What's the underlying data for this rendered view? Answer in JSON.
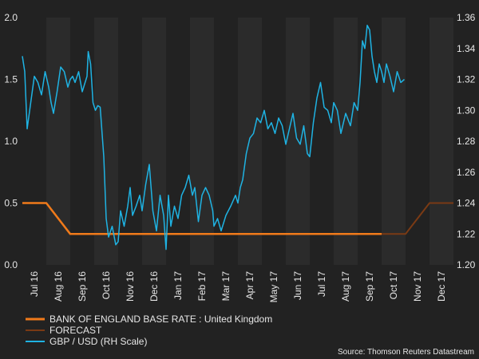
{
  "chart_data": {
    "type": "line",
    "left_axis": {
      "ylim": [
        0,
        2
      ],
      "ticks": [
        "0.0",
        "0.5",
        "1.0",
        "1.5",
        "2.0"
      ],
      "tick_values": [
        0,
        0.5,
        1.0,
        1.5,
        2.0
      ]
    },
    "right_axis": {
      "ylim": [
        1.2,
        1.36
      ],
      "ticks": [
        "1.20",
        "1.22",
        "1.24",
        "1.26",
        "1.28",
        "1.30",
        "1.32",
        "1.34",
        "1.36"
      ],
      "tick_values": [
        1.2,
        1.22,
        1.24,
        1.26,
        1.28,
        1.3,
        1.32,
        1.34,
        1.36
      ]
    },
    "x_range_months": [
      0,
      18
    ],
    "month_labels": [
      "Jul 16",
      "Aug 16",
      "Sep 16",
      "Oct 16",
      "Nov 16",
      "Dec 16",
      "Jan 17",
      "Feb 17",
      "Mar 17",
      "Apr 17",
      "May 17",
      "Jun 17",
      "Jul 17",
      "Aug 17",
      "Sep 17",
      "Oct 17",
      "Nov 17",
      "Dec 17"
    ],
    "series": [
      {
        "name": "BANK OF ENGLAND BASE RATE : United Kingdom",
        "axis": "left",
        "color": "#f07a1a",
        "x": [
          0,
          1,
          2,
          3,
          4,
          5,
          6,
          7,
          8,
          9,
          10,
          11,
          12,
          13,
          14,
          15
        ],
        "values": [
          0.5,
          0.5,
          0.25,
          0.25,
          0.25,
          0.25,
          0.25,
          0.25,
          0.25,
          0.25,
          0.25,
          0.25,
          0.25,
          0.25,
          0.25,
          0.25
        ]
      },
      {
        "name": "FORECAST",
        "axis": "left",
        "color": "#7a3a14",
        "x": [
          15,
          16,
          17,
          18
        ],
        "values": [
          0.25,
          0.25,
          0.5,
          0.5
        ]
      },
      {
        "name": "GBP / USD (RH Scale)",
        "axis": "right",
        "color": "#1fb3e3",
        "x": [
          0,
          0.1,
          0.2,
          0.35,
          0.5,
          0.65,
          0.8,
          0.95,
          1.1,
          1.2,
          1.3,
          1.45,
          1.6,
          1.75,
          1.9,
          2.0,
          2.1,
          2.2,
          2.35,
          2.5,
          2.7,
          2.75,
          2.85,
          2.95,
          3.05,
          3.15,
          3.25,
          3.4,
          3.5,
          3.6,
          3.75,
          3.9,
          4.0,
          4.1,
          4.25,
          4.4,
          4.5,
          4.6,
          4.75,
          4.9,
          5.0,
          5.15,
          5.3,
          5.45,
          5.6,
          5.75,
          5.9,
          6.0,
          6.1,
          6.2,
          6.35,
          6.5,
          6.65,
          6.8,
          6.95,
          7.1,
          7.2,
          7.35,
          7.5,
          7.65,
          7.8,
          7.95,
          8.0,
          8.15,
          8.3,
          8.5,
          8.7,
          8.9,
          9.0,
          9.1,
          9.2,
          9.35,
          9.5,
          9.65,
          9.8,
          9.95,
          10.1,
          10.25,
          10.4,
          10.55,
          10.7,
          10.85,
          11.0,
          11.15,
          11.3,
          11.45,
          11.6,
          11.75,
          11.9,
          12.0,
          12.15,
          12.3,
          12.45,
          12.6,
          12.75,
          12.9,
          13.0,
          13.15,
          13.3,
          13.5,
          13.7,
          13.85,
          14.0,
          14.1,
          14.2,
          14.3,
          14.4,
          14.5,
          14.6,
          14.7,
          14.8,
          14.9,
          15.0,
          15.1,
          15.2,
          15.35,
          15.5,
          15.65,
          15.8,
          15.95
        ],
        "values": [
          1.335,
          1.325,
          1.288,
          1.305,
          1.322,
          1.318,
          1.31,
          1.325,
          1.315,
          1.305,
          1.298,
          1.312,
          1.328,
          1.325,
          1.315,
          1.32,
          1.322,
          1.318,
          1.325,
          1.312,
          1.322,
          1.338,
          1.33,
          1.305,
          1.3,
          1.303,
          1.302,
          1.27,
          1.23,
          1.218,
          1.225,
          1.213,
          1.215,
          1.235,
          1.225,
          1.238,
          1.25,
          1.232,
          1.238,
          1.245,
          1.235,
          1.252,
          1.265,
          1.235,
          1.222,
          1.245,
          1.232,
          1.21,
          1.245,
          1.225,
          1.238,
          1.23,
          1.245,
          1.25,
          1.258,
          1.245,
          1.25,
          1.228,
          1.245,
          1.25,
          1.245,
          1.235,
          1.225,
          1.23,
          1.222,
          1.232,
          1.238,
          1.245,
          1.24,
          1.25,
          1.255,
          1.272,
          1.282,
          1.285,
          1.295,
          1.292,
          1.3,
          1.288,
          1.292,
          1.285,
          1.295,
          1.29,
          1.278,
          1.288,
          1.298,
          1.282,
          1.278,
          1.29,
          1.272,
          1.27,
          1.292,
          1.308,
          1.318,
          1.302,
          1.3,
          1.292,
          1.305,
          1.3,
          1.285,
          1.298,
          1.29,
          1.305,
          1.3,
          1.318,
          1.345,
          1.34,
          1.355,
          1.352,
          1.335,
          1.325,
          1.318,
          1.33,
          1.325,
          1.318,
          1.33,
          1.322,
          1.312,
          1.325,
          1.318,
          1.32
        ]
      }
    ],
    "source": "Source: Thomson Reuters Datastream",
    "colors": {
      "background": "#222222",
      "band": "#2b2b2b",
      "tick": "#e6e6e6"
    }
  }
}
